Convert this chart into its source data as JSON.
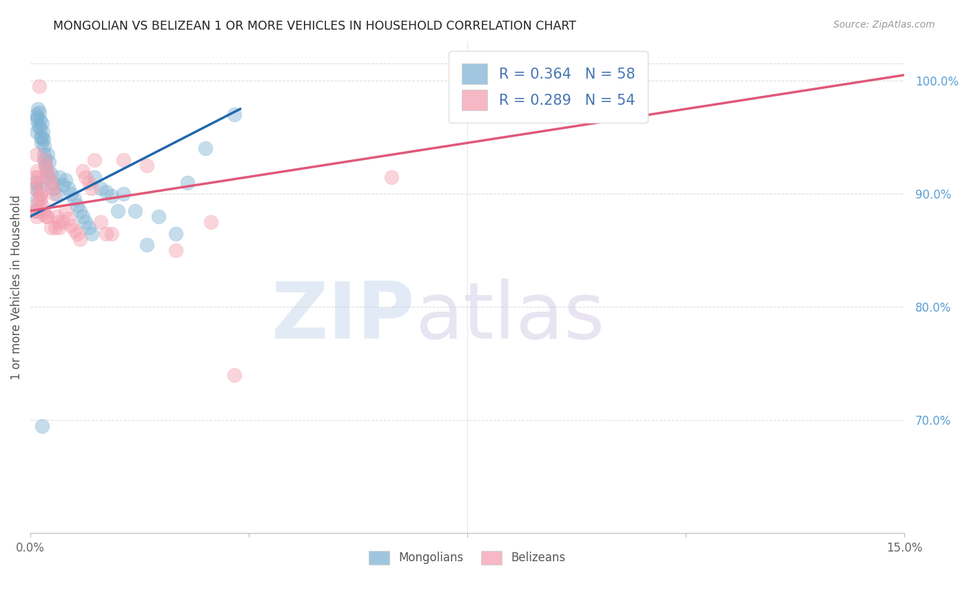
{
  "title": "MONGOLIAN VS BELIZEAN 1 OR MORE VEHICLES IN HOUSEHOLD CORRELATION CHART",
  "source": "Source: ZipAtlas.com",
  "ylabel": "1 or more Vehicles in Household",
  "mongolian_R": 0.364,
  "mongolian_N": 58,
  "belizean_R": 0.289,
  "belizean_N": 54,
  "blue_color": "#7fb3d3",
  "pink_color": "#f4a0b0",
  "blue_line_color": "#2166ac",
  "pink_line_color": "#e05878",
  "legend_text_color": "#4575b4",
  "xmin": 0.0,
  "xmax": 15.0,
  "ymin": 60.0,
  "ymax": 103.5,
  "yticks": [
    70.0,
    80.0,
    90.0,
    100.0
  ],
  "right_ytick_color": "#5a9fd4",
  "grid_color": "#dddddd",
  "blue_trend": [
    0.0,
    88.0,
    3.6,
    97.5
  ],
  "pink_trend": [
    0.0,
    88.5,
    15.0,
    100.5
  ],
  "mongolian_x": [
    0.08,
    0.09,
    0.1,
    0.1,
    0.11,
    0.12,
    0.13,
    0.14,
    0.15,
    0.16,
    0.17,
    0.18,
    0.19,
    0.2,
    0.2,
    0.21,
    0.22,
    0.23,
    0.24,
    0.25,
    0.26,
    0.27,
    0.28,
    0.3,
    0.32,
    0.35,
    0.38,
    0.4,
    0.45,
    0.5,
    0.55,
    0.6,
    0.65,
    0.7,
    0.75,
    0.8,
    0.85,
    0.9,
    0.95,
    1.0,
    1.05,
    1.1,
    1.2,
    1.3,
    1.4,
    1.5,
    1.6,
    1.8,
    2.0,
    2.2,
    2.5,
    2.7,
    3.0,
    3.5,
    0.1,
    0.12,
    0.15,
    0.2
  ],
  "mongolian_y": [
    90.5,
    91.0,
    95.5,
    96.5,
    97.0,
    96.8,
    97.5,
    96.0,
    97.2,
    96.5,
    95.8,
    95.0,
    94.5,
    95.0,
    96.2,
    95.5,
    94.8,
    94.2,
    93.5,
    93.0,
    92.5,
    92.0,
    91.5,
    93.5,
    92.8,
    91.8,
    91.0,
    90.5,
    90.0,
    91.5,
    90.8,
    91.2,
    90.5,
    90.0,
    89.5,
    89.0,
    88.5,
    88.0,
    87.5,
    87.0,
    86.5,
    91.5,
    90.5,
    90.2,
    89.8,
    88.5,
    90.0,
    88.5,
    85.5,
    88.0,
    86.5,
    91.0,
    94.0,
    97.0,
    88.5,
    89.5,
    90.5,
    69.5
  ],
  "belizean_x": [
    0.06,
    0.08,
    0.09,
    0.1,
    0.11,
    0.12,
    0.13,
    0.14,
    0.15,
    0.16,
    0.18,
    0.2,
    0.22,
    0.24,
    0.26,
    0.28,
    0.3,
    0.32,
    0.35,
    0.38,
    0.4,
    0.42,
    0.45,
    0.48,
    0.5,
    0.55,
    0.6,
    0.65,
    0.7,
    0.75,
    0.8,
    0.85,
    0.9,
    0.95,
    1.0,
    1.05,
    1.1,
    1.2,
    1.3,
    1.4,
    1.6,
    2.0,
    2.5,
    3.1,
    3.5,
    6.2,
    7.6,
    0.1,
    0.12,
    0.15,
    0.18,
    0.22,
    0.35,
    0.28
  ],
  "belizean_y": [
    88.5,
    91.5,
    90.5,
    89.0,
    93.5,
    92.0,
    91.5,
    91.0,
    99.5,
    90.0,
    89.5,
    89.0,
    88.5,
    93.0,
    92.5,
    88.0,
    92.0,
    91.5,
    91.0,
    90.5,
    90.0,
    87.0,
    88.0,
    87.5,
    87.0,
    87.5,
    88.5,
    87.8,
    87.2,
    86.8,
    86.5,
    86.0,
    92.0,
    91.5,
    91.0,
    90.5,
    93.0,
    87.5,
    86.5,
    86.5,
    93.0,
    92.5,
    85.0,
    87.5,
    74.0,
    91.5,
    99.0,
    88.0,
    88.5,
    89.5,
    90.0,
    88.2,
    87.0,
    88.0
  ]
}
